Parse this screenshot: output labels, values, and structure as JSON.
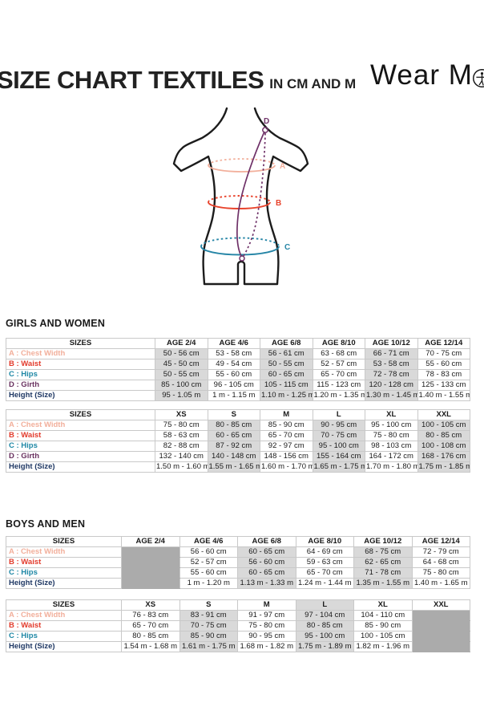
{
  "page": {
    "title": "SIZE CHART TEXTILES",
    "subtitle": "IN CM AND M",
    "brand": "Wear Moi",
    "brand_prefix": "Wear M",
    "brand_suffix": "i"
  },
  "colors": {
    "chest": "#F2AF9B",
    "waist": "#E23A2B",
    "hips": "#1E87A5",
    "girth": "#69315F",
    "height": "#1F3864",
    "shade": "#D9D9D9",
    "blocked": "#ABABAB",
    "diagram_outline": "#1C1C1C",
    "diagram_girth": "#6F3168"
  },
  "diagram": {
    "label_a": "A",
    "label_b": "B",
    "label_c": "C",
    "label_d": "D"
  },
  "sections": [
    {
      "heading": "GIRLS AND WOMEN",
      "tables": [
        {
          "columns": [
            "SIZES",
            "AGE 2/4",
            "AGE 4/6",
            "AGE 6/8",
            "AGE 8/10",
            "AGE 10/12",
            "AGE 12/14"
          ],
          "shaded_columns": [
            0,
            2,
            4
          ],
          "header_shaded_columns": [],
          "rows": [
            {
              "label": "A : Chest Width",
              "key": "chest",
              "values": [
                "50 - 56 cm",
                "53 - 58 cm",
                "56 - 61 cm",
                "63 - 68 cm",
                "66 - 71 cm",
                "70 - 75 cm"
              ]
            },
            {
              "label": "B : Waist",
              "key": "waist",
              "values": [
                "45 - 50 cm",
                "49 - 54 cm",
                "50 - 55 cm",
                "52 - 57 cm",
                "53 - 58 cm",
                "55 - 60 cm"
              ]
            },
            {
              "label": "C : Hips",
              "key": "hips",
              "values": [
                "50 - 55 cm",
                "55 - 60 cm",
                "60 - 65 cm",
                "65 - 70 cm",
                "72 - 78 cm",
                "78 - 83 cm"
              ]
            },
            {
              "label": "D : Girth",
              "key": "girth",
              "values": [
                "85 - 100 cm",
                "96 - 105 cm",
                "105 - 115 cm",
                "115 - 123 cm",
                "120 - 128 cm",
                "125 - 133 cm"
              ]
            },
            {
              "label": "Height (Size)",
              "key": "height",
              "values": [
                "95 - 1.05 m",
                "1 m - 1.15 m",
                "1.10 m - 1.25 m",
                "1.20 m - 1.35 m",
                "1.30 m - 1.45 m",
                "1.40 m - 1.55 m"
              ]
            }
          ]
        },
        {
          "columns": [
            "SIZES",
            "XS",
            "S",
            "M",
            "L",
            "XL",
            "XXL"
          ],
          "shaded_columns": [
            1,
            3,
            5
          ],
          "header_shaded_columns": [],
          "rows": [
            {
              "label": "A : Chest Width",
              "key": "chest",
              "values": [
                "75 - 80 cm",
                "80 - 85 cm",
                "85 - 90 cm",
                "90 - 95 cm",
                "95 - 100 cm",
                "100 - 105 cm"
              ]
            },
            {
              "label": "B : Waist",
              "key": "waist",
              "values": [
                "58 - 63 cm",
                "60 - 65 cm",
                "65 - 70 cm",
                "70 - 75 cm",
                "75 - 80 cm",
                "80 - 85 cm"
              ]
            },
            {
              "label": "C : Hips",
              "key": "hips",
              "values": [
                "82 - 88 cm",
                "87 - 92 cm",
                "92 - 97 cm",
                "95 - 100 cm",
                "98 - 103 cm",
                "100 - 108 cm"
              ]
            },
            {
              "label": "D : Girth",
              "key": "girth",
              "values": [
                "132 - 140 cm",
                "140 - 148 cm",
                "148 - 156 cm",
                "155 - 164 cm",
                "164 - 172 cm",
                "168 - 176 cm"
              ]
            },
            {
              "label": "Height (Size)",
              "key": "height",
              "values": [
                "1.50 m - 1.60 m",
                "1.55 m - 1.65 m",
                "1.60 m - 1.70 m",
                "1.65 m - 1.75 m",
                "1.70 m - 1.80 m",
                "1.75 m - 1.85 m"
              ]
            }
          ]
        }
      ]
    },
    {
      "heading": "BOYS AND MEN",
      "tables": [
        {
          "columns": [
            "SIZES",
            "AGE 2/4",
            "AGE 4/6",
            "AGE 6/8",
            "AGE 8/10",
            "AGE 10/12",
            "AGE 12/14"
          ],
          "shaded_columns": [
            2,
            4
          ],
          "header_shaded_columns": [],
          "rows": [
            {
              "label": "A : Chest Width",
              "key": "chest",
              "values": [
                null,
                "56 - 60 cm",
                "60 - 65 cm",
                "64 - 69 cm",
                "68 - 75 cm",
                "72 - 79 cm"
              ]
            },
            {
              "label": "B : Waist",
              "key": "waist",
              "values": [
                null,
                "52 - 57 cm",
                "56 - 60 cm",
                "59 - 63 cm",
                "62 - 65 cm",
                "64 - 68 cm"
              ]
            },
            {
              "label": "C : Hips",
              "key": "hips",
              "values": [
                null,
                "55 - 60 cm",
                "60 - 65 cm",
                "65 - 70 cm",
                "71 - 78 cm",
                "75 - 80 cm"
              ]
            },
            {
              "label": "Height (Size)",
              "key": "height",
              "values": [
                null,
                "1 m - 1.20 m",
                "1.13 m - 1.33 m",
                "1.24 m - 1.44 m",
                "1.35 m - 1.55 m",
                "1.40 m - 1.65 m"
              ]
            }
          ]
        },
        {
          "columns": [
            "SIZES",
            "XS",
            "S",
            "M",
            "L",
            "XL",
            "XXL"
          ],
          "shaded_columns": [
            1,
            3
          ],
          "header_shaded_columns": [
            3
          ],
          "rows": [
            {
              "label": "A : Chest Width",
              "key": "chest",
              "values": [
                "76 - 83 cm",
                "83 - 91 cm",
                "91 - 97 cm",
                "97 - 104 cm",
                "104 - 110 cm",
                null
              ]
            },
            {
              "label": "B : Waist",
              "key": "waist",
              "values": [
                "65 - 70 cm",
                "70 - 75 cm",
                "75 - 80 cm",
                "80 - 85 cm",
                "85 - 90 cm",
                null
              ]
            },
            {
              "label": "C : Hips",
              "key": "hips",
              "values": [
                "80 - 85 cm",
                "85 - 90 cm",
                "90 - 95 cm",
                "95 - 100 cm",
                "100 - 105 cm",
                null
              ]
            },
            {
              "label": "Height (Size)",
              "key": "height",
              "values": [
                "1.54 m - 1.68 m",
                "1.61 m - 1.75 m",
                "1.68 m - 1.82 m",
                "1.75 m - 1.89 m",
                "1.82 m - 1.96 m",
                null
              ]
            }
          ]
        }
      ]
    }
  ]
}
